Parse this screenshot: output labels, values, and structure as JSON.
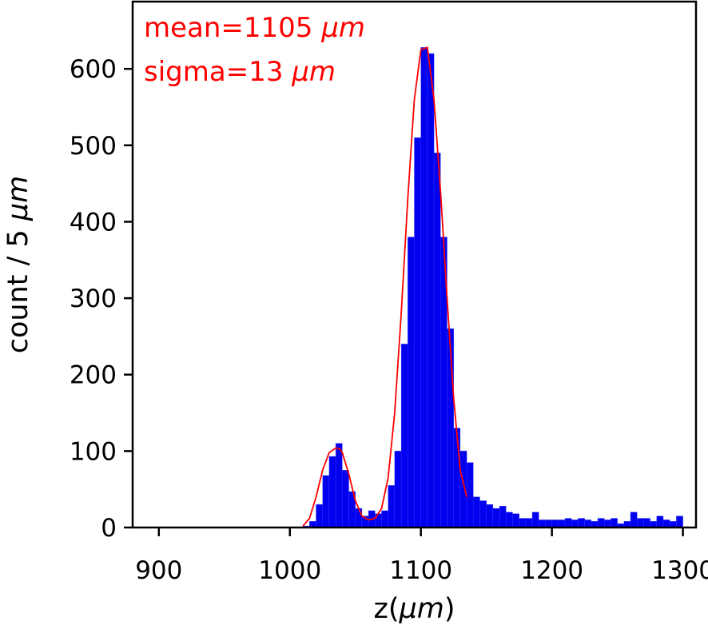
{
  "chart_data": {
    "type": "bar",
    "bin_width": 5,
    "x_bins_start": [
      1010,
      1015,
      1020,
      1025,
      1030,
      1035,
      1040,
      1045,
      1050,
      1055,
      1060,
      1065,
      1070,
      1075,
      1080,
      1085,
      1090,
      1095,
      1100,
      1105,
      1110,
      1115,
      1120,
      1125,
      1130,
      1135,
      1140,
      1145,
      1150,
      1155,
      1160,
      1165,
      1170,
      1175,
      1180,
      1185,
      1190,
      1195,
      1200,
      1205,
      1210,
      1215,
      1220,
      1225,
      1230,
      1235,
      1240,
      1245,
      1250,
      1255,
      1260,
      1265,
      1270,
      1275,
      1280,
      1285,
      1290,
      1295
    ],
    "values": [
      2,
      8,
      30,
      68,
      93,
      110,
      75,
      47,
      25,
      15,
      22,
      18,
      22,
      55,
      100,
      240,
      380,
      510,
      628,
      620,
      490,
      380,
      260,
      130,
      100,
      85,
      40,
      35,
      30,
      25,
      28,
      20,
      18,
      12,
      12,
      20,
      10,
      10,
      10,
      10,
      12,
      10,
      12,
      10,
      8,
      12,
      10,
      12,
      5,
      8,
      20,
      12,
      12,
      8,
      15,
      10,
      8,
      15
    ],
    "fit_x": [
      1010,
      1015,
      1020,
      1025,
      1030,
      1035,
      1038,
      1040,
      1045,
      1050,
      1055,
      1060,
      1065,
      1070,
      1075,
      1080,
      1085,
      1090,
      1095,
      1100,
      1105,
      1110,
      1115,
      1120,
      1125,
      1130,
      1135
    ],
    "fit_y": [
      2,
      12,
      40,
      75,
      98,
      104,
      103,
      98,
      70,
      35,
      15,
      10,
      12,
      25,
      65,
      150,
      280,
      430,
      560,
      625,
      628,
      560,
      440,
      300,
      170,
      75,
      40
    ],
    "series": [
      {
        "name": "histogram",
        "color": "#0000ee"
      },
      {
        "name": "gaussian fit",
        "color": "#ff0000"
      }
    ],
    "annotations": [
      {
        "prefix": "mean=1105 ",
        "unit": "μm",
        "color": "#ff0000"
      },
      {
        "prefix": "sigma=13 ",
        "unit": "μm",
        "color": "#ff0000"
      }
    ],
    "x_ticks": [
      "900",
      "1000",
      "1100",
      "1200",
      "1300"
    ],
    "x_tick_values": [
      900,
      1000,
      1100,
      1200,
      1300
    ],
    "y_ticks": [
      "0",
      "100",
      "200",
      "300",
      "400",
      "500",
      "600"
    ],
    "y_tick_values": [
      0,
      100,
      200,
      300,
      400,
      500,
      600
    ],
    "xlim": [
      880,
      1310
    ],
    "ylim": [
      0,
      688
    ],
    "xlabel_prefix": "z(",
    "xlabel_unit": "μm",
    "xlabel_suffix": ")",
    "ylabel_prefix": "count / 5 ",
    "ylabel_unit": "μm",
    "grid": false
  }
}
